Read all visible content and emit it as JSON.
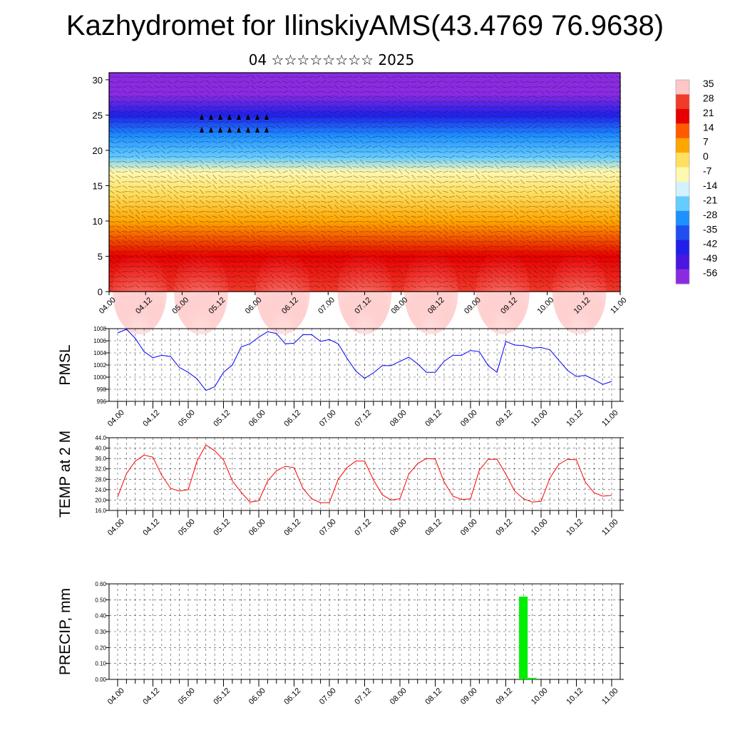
{
  "title": "Kazhydromet for IlinskiyAMS(43.4769 76.9638)",
  "subtitle": "04 ☆☆☆☆☆☆☆☆ 2025",
  "x_ticks": [
    "04.00",
    "04.12",
    "05.00",
    "05.12",
    "06.00",
    "06.12",
    "07.00",
    "07.12",
    "08.00",
    "08.12",
    "09.00",
    "09.12",
    "10.00",
    "10.12",
    "11.00"
  ],
  "chart_data": [
    {
      "type": "heatmap",
      "ylim": [
        0,
        31
      ],
      "y_ticks": [
        "0",
        "5",
        "10",
        "15",
        "20",
        "25",
        "30"
      ],
      "colorbar": {
        "labels": [
          "35",
          "28",
          "21",
          "14",
          "7",
          "0",
          "-7",
          "-14",
          "-21",
          "-28",
          "-35",
          "-42",
          "-49",
          "-56"
        ],
        "colors": [
          "#ffc6c6",
          "#f03a2a",
          "#e60000",
          "#ff5a00",
          "#ffa600",
          "#ffe060",
          "#fff8b0",
          "#d2f2ff",
          "#66ccff",
          "#1e90ff",
          "#1f4ff0",
          "#2020e8",
          "#4a16e0",
          "#8a2be2"
        ]
      },
      "temperature_bands": [
        {
          "height_km": 0,
          "temp": 30
        },
        {
          "height_km": 5,
          "temp": 21
        },
        {
          "height_km": 10,
          "temp": 10
        },
        {
          "height_km": 14,
          "temp": 0
        },
        {
          "height_km": 17,
          "temp": -10
        },
        {
          "height_km": 19,
          "temp": -20
        },
        {
          "height_km": 22,
          "temp": -30
        },
        {
          "height_km": 25,
          "temp": -45
        },
        {
          "height_km": 28,
          "temp": -56
        },
        {
          "height_km": 31,
          "temp": -60
        }
      ]
    },
    {
      "type": "line",
      "ylabel": "PMSL",
      "ylim": [
        996,
        1008
      ],
      "y_ticks": [
        "996",
        "998",
        "1000",
        "1002",
        "1004",
        "1006",
        "1008"
      ],
      "series": [
        {
          "color": "#0000ff",
          "values": [
            1007.3,
            1007.9,
            1006.4,
            1004.2,
            1003.2,
            1003.6,
            1003.4,
            1001.6,
            1000.8,
            999.7,
            997.8,
            998.4,
            1000.8,
            1002.0,
            1005.0,
            1005.5,
            1006.6,
            1007.5,
            1007.2,
            1005.5,
            1005.6,
            1007.0,
            1007.0,
            1005.9,
            1006.2,
            1005.5,
            1003.1,
            1001.0,
            999.8,
            1000.7,
            1001.9,
            1001.9,
            1002.6,
            1003.3,
            1002.2,
            1000.8,
            1000.8,
            1002.6,
            1003.6,
            1003.6,
            1004.4,
            1004.2,
            1001.9,
            1000.8,
            1005.9,
            1005.3,
            1005.2,
            1004.8,
            1004.9,
            1004.5,
            1002.8,
            1001.1,
            1000.1,
            1000.3,
            999.6,
            998.8,
            999.3
          ]
        }
      ]
    },
    {
      "type": "line",
      "ylabel": "TEMP at 2 M",
      "ylim": [
        16,
        44
      ],
      "y_ticks": [
        "16.0",
        "20.0",
        "24.0",
        "28.0",
        "32.0",
        "36.0",
        "40.0",
        "44.0"
      ],
      "series": [
        {
          "color": "#ff0000",
          "values": [
            21.2,
            30.2,
            35.0,
            37.3,
            36.5,
            29.5,
            24.5,
            23.5,
            24.0,
            35.0,
            41.2,
            39.0,
            35.5,
            27.4,
            23.0,
            19.2,
            19.7,
            27.3,
            31.3,
            33.0,
            32.5,
            24.5,
            20.5,
            19.0,
            19.0,
            28.0,
            32.5,
            35.0,
            35.0,
            27.7,
            22.0,
            20.0,
            20.5,
            30.0,
            34.0,
            36.0,
            35.8,
            27.0,
            21.5,
            20.2,
            20.5,
            31.5,
            35.7,
            35.7,
            30.0,
            23.5,
            20.5,
            19.2,
            19.5,
            28.5,
            33.7,
            35.7,
            35.5,
            27.0,
            22.8,
            21.5,
            21.8
          ]
        }
      ]
    },
    {
      "type": "bar",
      "ylabel": "PRECIP, mm",
      "ylim": [
        0,
        0.6
      ],
      "y_ticks": [
        "0.00",
        "0.10",
        "0.20",
        "0.30",
        "0.40",
        "0.50",
        "0.60"
      ],
      "color": "#00ee00",
      "values": [
        0,
        0,
        0,
        0,
        0,
        0,
        0,
        0,
        0,
        0,
        0,
        0,
        0,
        0,
        0,
        0,
        0,
        0,
        0,
        0,
        0,
        0,
        0,
        0,
        0,
        0,
        0,
        0,
        0,
        0,
        0,
        0,
        0,
        0,
        0,
        0,
        0,
        0,
        0,
        0,
        0,
        0,
        0,
        0,
        0,
        0,
        0.52,
        0.01,
        0,
        0,
        0,
        0,
        0,
        0,
        0,
        0,
        0
      ]
    }
  ]
}
